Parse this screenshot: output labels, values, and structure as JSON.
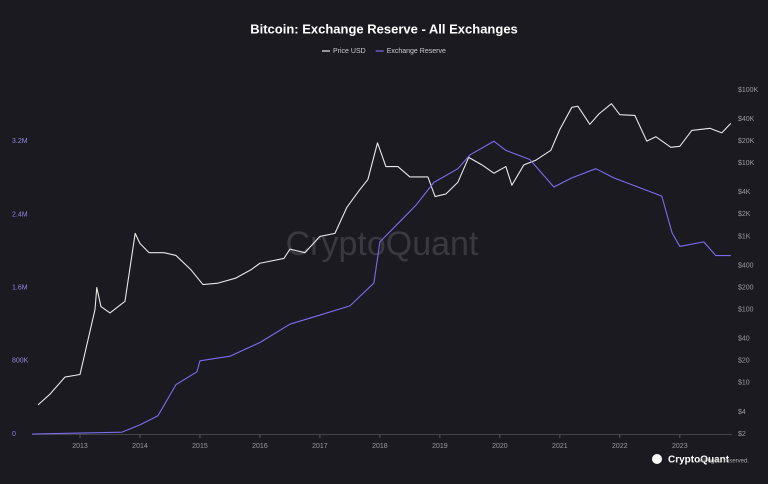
{
  "chart_data": {
    "type": "line",
    "title": "Bitcoin: Exchange Reserve - All Exchanges",
    "watermark": "CryptoQuant",
    "footer_brand": "CryptoQuant",
    "footer_note": "All rights reserved.",
    "legend": "top",
    "xlim": [
      2012.2,
      2023.87
    ],
    "xticks": [
      2013,
      2014,
      2015,
      2016,
      2017,
      2018,
      2019,
      2020,
      2021,
      2022,
      2023
    ],
    "ylim": [
      0,
      3760000
    ],
    "yticks": [
      0,
      {
        "value": 800000,
        "label": "800K"
      },
      {
        "value": 1600000,
        "label": "1.6M"
      },
      {
        "value": 2400000,
        "label": "2.4M"
      },
      {
        "value": 3200000,
        "label": "3.2M"
      }
    ],
    "y2lim": [
      2,
      100000
    ],
    "y2scale": "log",
    "y2ticks": [
      {
        "value": 2,
        "label": "$2"
      },
      {
        "value": 4,
        "label": "$4"
      },
      {
        "value": 10,
        "label": "$10"
      },
      {
        "value": 20,
        "label": "$20"
      },
      {
        "value": 40,
        "label": "$40"
      },
      {
        "value": 100,
        "label": "$100"
      },
      {
        "value": 200,
        "label": "$200"
      },
      {
        "value": 400,
        "label": "$400"
      },
      {
        "value": 1000,
        "label": "$1K"
      },
      {
        "value": 2000,
        "label": "$2K"
      },
      {
        "value": 4000,
        "label": "$4K"
      },
      {
        "value": 10000,
        "label": "$10K"
      },
      {
        "value": 20000,
        "label": "$20K"
      },
      {
        "value": 40000,
        "label": "$40K"
      },
      {
        "value": 100000,
        "label": "$100K"
      }
    ],
    "series": [
      {
        "name": "Price USD",
        "color": "#e8e8e8",
        "axis": "y2",
        "x": [
          2012.3,
          2012.5,
          2012.75,
          2013.0,
          2013.25,
          2013.28,
          2013.35,
          2013.5,
          2013.75,
          2013.92,
          2014.0,
          2014.15,
          2014.4,
          2014.6,
          2014.85,
          2015.05,
          2015.3,
          2015.6,
          2015.85,
          2016.0,
          2016.4,
          2016.5,
          2016.75,
          2017.0,
          2017.25,
          2017.45,
          2017.65,
          2017.8,
          2017.96,
          2018.1,
          2018.3,
          2018.5,
          2018.8,
          2018.92,
          2019.1,
          2019.3,
          2019.48,
          2019.7,
          2019.9,
          2020.1,
          2020.2,
          2020.4,
          2020.6,
          2020.85,
          2021.0,
          2021.2,
          2021.3,
          2021.5,
          2021.65,
          2021.86,
          2022.0,
          2022.25,
          2022.45,
          2022.6,
          2022.85,
          2023.0,
          2023.2,
          2023.5,
          2023.7,
          2023.85
        ],
        "values": [
          5,
          7,
          12,
          13,
          100,
          200,
          110,
          90,
          130,
          1100,
          800,
          600,
          600,
          550,
          350,
          220,
          230,
          270,
          350,
          430,
          500,
          670,
          600,
          1000,
          1100,
          2500,
          4200,
          6000,
          19000,
          9000,
          9000,
          6500,
          6500,
          3500,
          3800,
          5500,
          12000,
          9500,
          7300,
          9000,
          5000,
          9500,
          11000,
          15000,
          29000,
          58000,
          60000,
          34000,
          47000,
          65000,
          46000,
          45000,
          20000,
          23000,
          16500,
          17000,
          28000,
          30000,
          26000,
          35000
        ]
      },
      {
        "name": "Exchange Reserve",
        "color": "#7b6cf0",
        "axis": "y",
        "x": [
          2012.2,
          2013.0,
          2013.7,
          2014.0,
          2014.3,
          2014.6,
          2014.95,
          2015.0,
          2015.5,
          2016.0,
          2016.5,
          2017.0,
          2017.5,
          2017.9,
          2018.0,
          2018.3,
          2018.6,
          2018.9,
          2019.3,
          2019.5,
          2019.9,
          2020.1,
          2020.5,
          2020.9,
          2021.2,
          2021.6,
          2021.9,
          2022.3,
          2022.7,
          2022.87,
          2023.0,
          2023.4,
          2023.6,
          2023.85
        ],
        "values": [
          0,
          10000,
          20000,
          100000,
          200000,
          540000,
          680000,
          800000,
          850000,
          1000000,
          1200000,
          1300000,
          1400000,
          1650000,
          2100000,
          2300000,
          2500000,
          2750000,
          2900000,
          3050000,
          3200000,
          3100000,
          3000000,
          2700000,
          2800000,
          2900000,
          2800000,
          2700000,
          2600000,
          2200000,
          2050000,
          2100000,
          1950000,
          1950000
        ]
      }
    ]
  }
}
